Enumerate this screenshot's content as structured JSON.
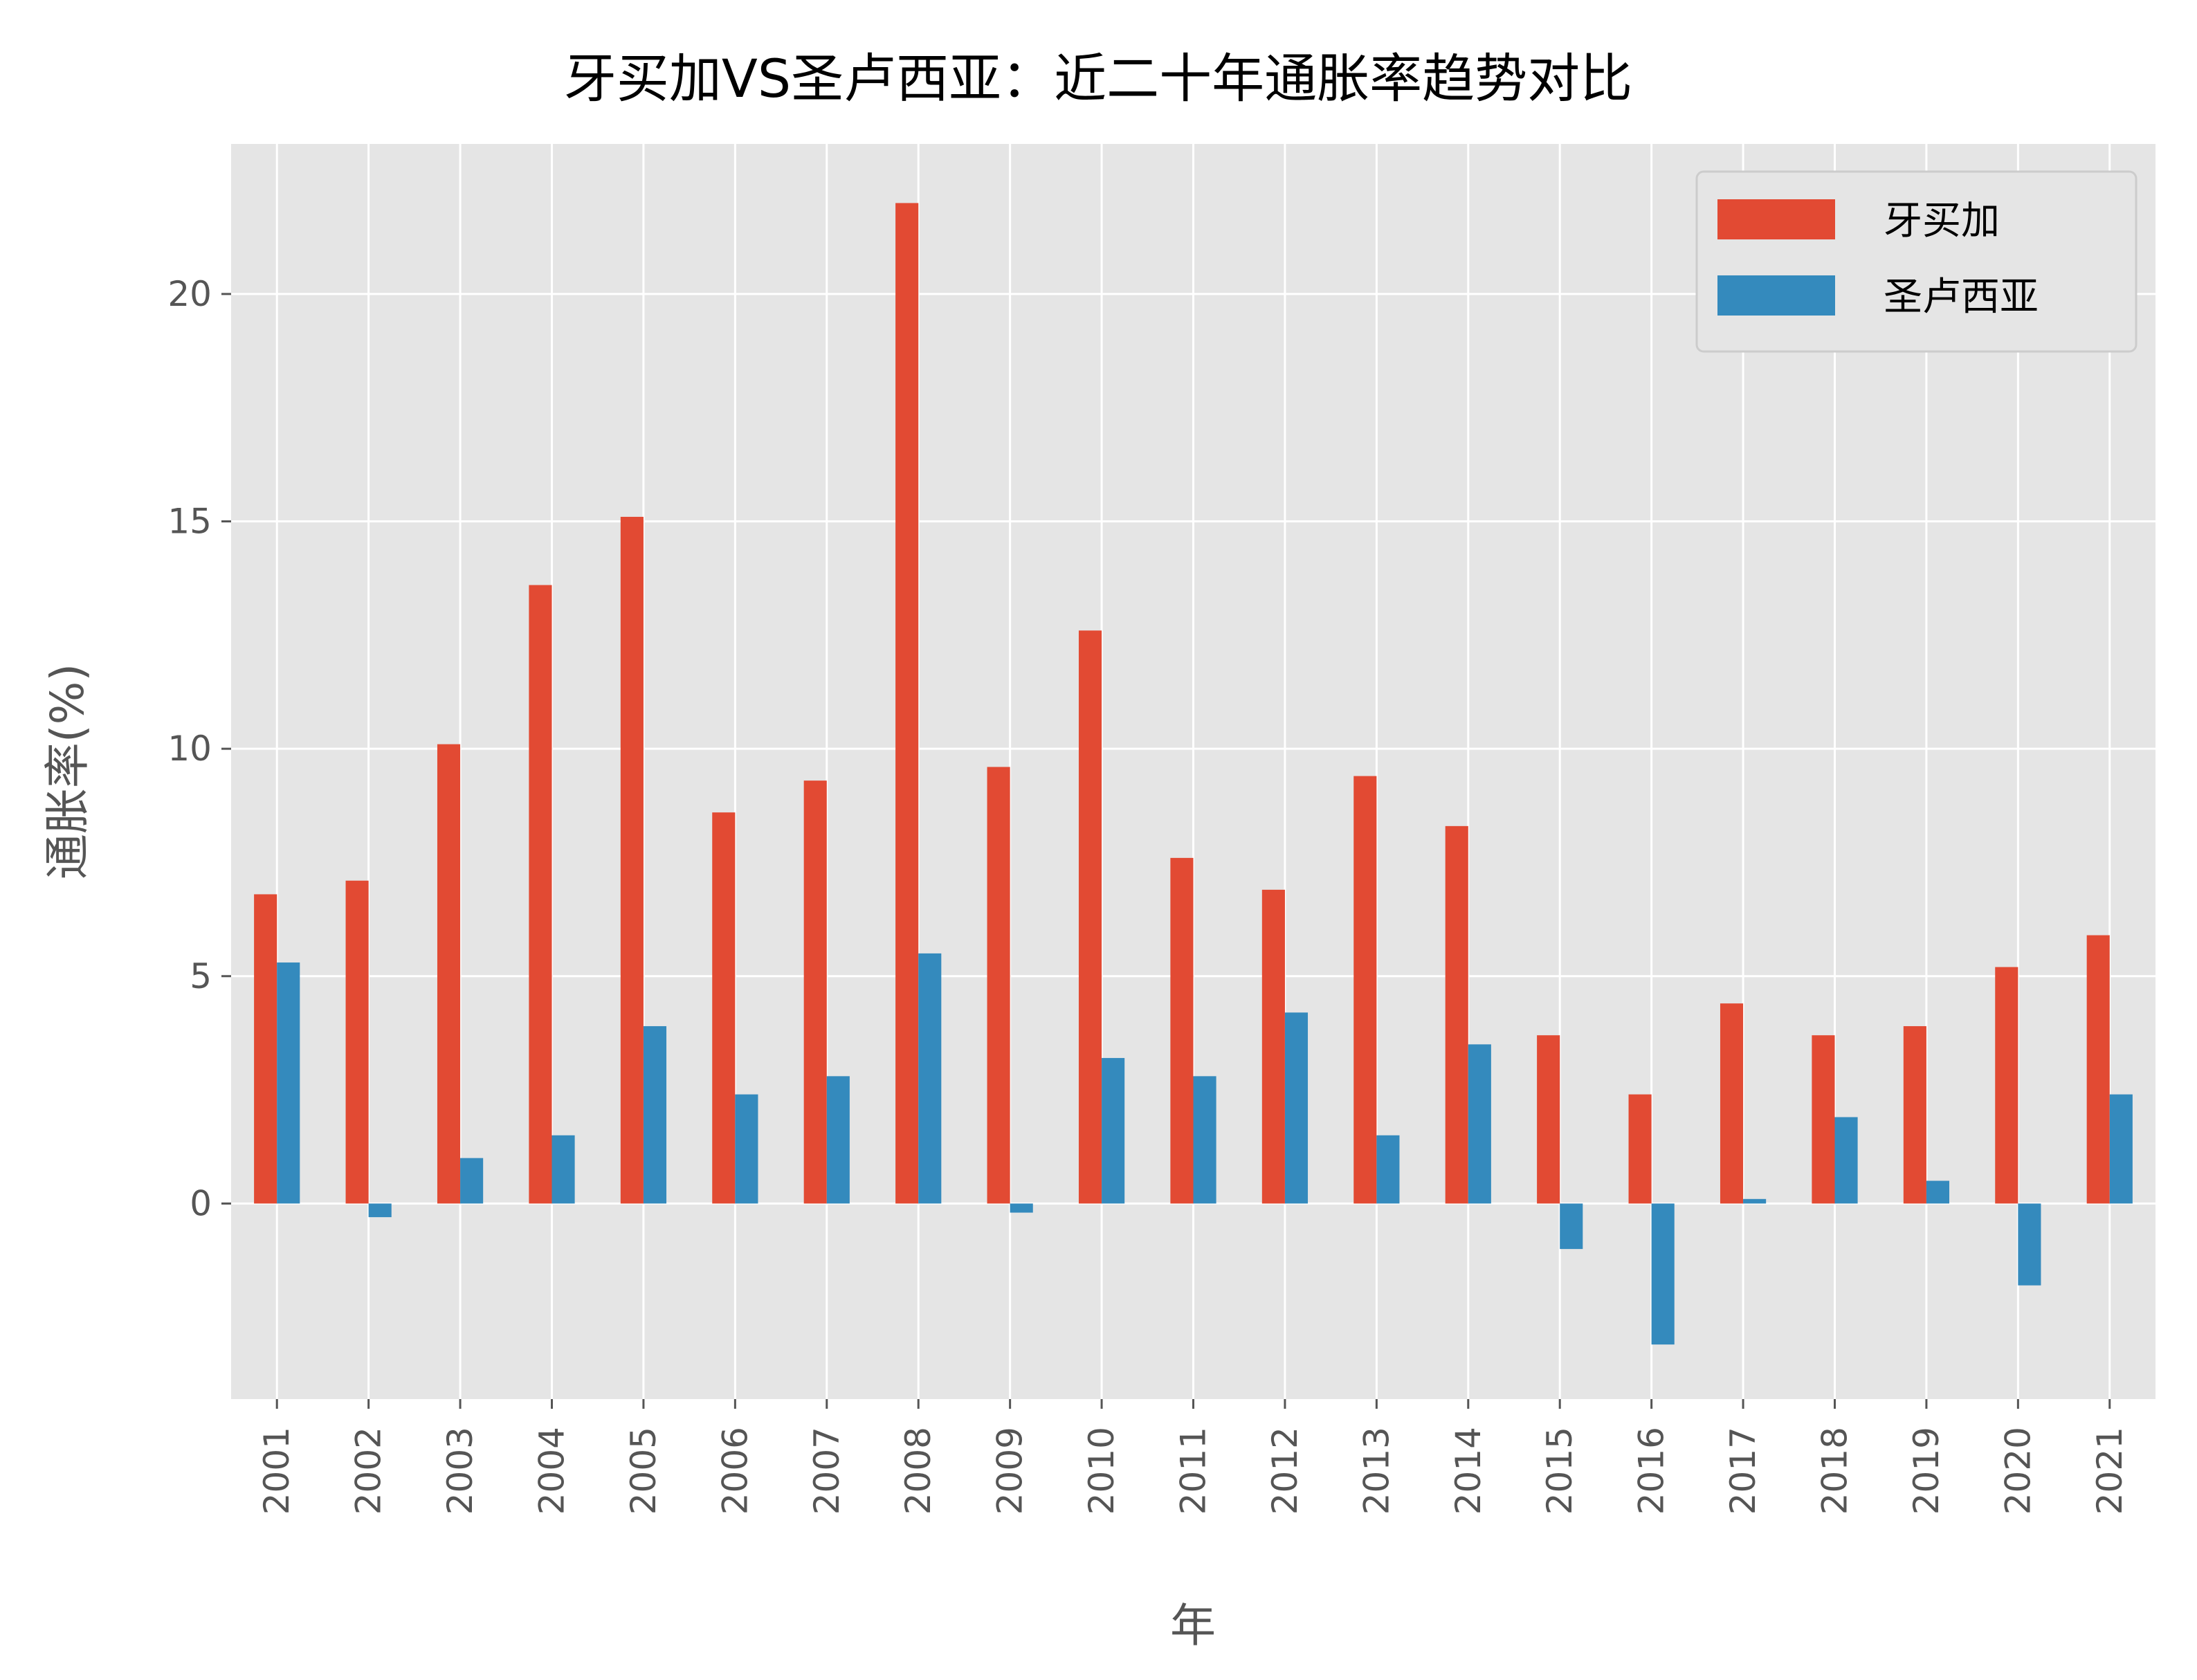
{
  "chart_data": {
    "type": "bar",
    "title": "牙买加VS圣卢西亚：近二十年通胀率趋势对比",
    "xlabel": "年",
    "ylabel": "通胀率(%)",
    "categories": [
      "2001",
      "2002",
      "2003",
      "2004",
      "2005",
      "2006",
      "2007",
      "2008",
      "2009",
      "2010",
      "2011",
      "2012",
      "2013",
      "2014",
      "2015",
      "2016",
      "2017",
      "2018",
      "2019",
      "2020",
      "2021"
    ],
    "series": [
      {
        "name": "牙买加",
        "color": "#E24A33",
        "values": [
          6.8,
          7.1,
          10.1,
          13.6,
          15.1,
          8.6,
          9.3,
          22.0,
          9.6,
          12.6,
          7.6,
          6.9,
          9.4,
          8.3,
          3.7,
          2.4,
          4.4,
          3.7,
          3.9,
          5.2,
          5.9
        ]
      },
      {
        "name": "圣卢西亚",
        "color": "#348ABD",
        "values": [
          5.3,
          -0.3,
          1.0,
          1.5,
          3.9,
          2.4,
          2.8,
          5.5,
          -0.2,
          3.2,
          2.8,
          4.2,
          1.5,
          3.5,
          -1.0,
          -3.1,
          0.1,
          1.9,
          0.5,
          -1.8,
          2.4
        ]
      }
    ],
    "ylim": [
      -4.3,
      23.3
    ],
    "yticks": [
      0,
      5,
      10,
      15,
      20
    ],
    "grid": true,
    "legend": "top-right",
    "background": "#E5E5E5"
  }
}
